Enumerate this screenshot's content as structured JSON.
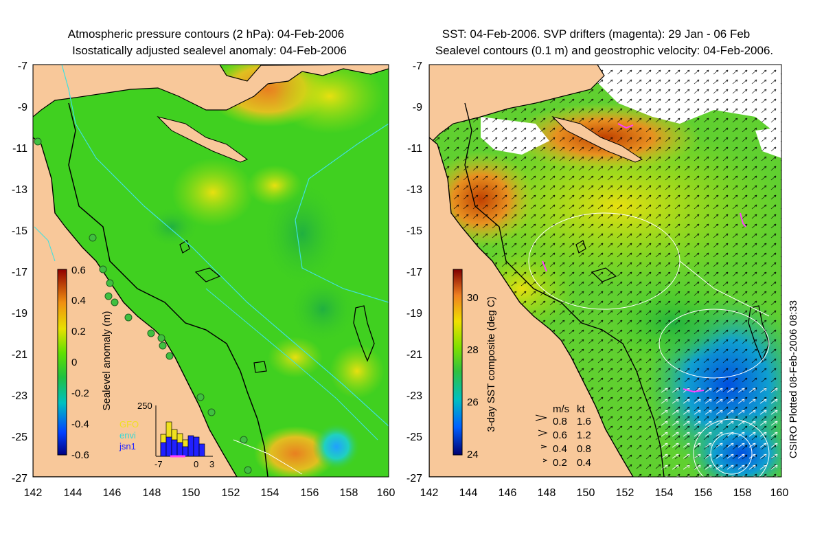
{
  "left_panel": {
    "title_line1": "Atmospheric pressure contours (2 hPa): 04-Feb-2006",
    "title_line2": "Isostatically adjusted sealevel anomaly: 04-Feb-2006",
    "colorbar_label": "Sealevel anomaly (m)",
    "colorbar_ticks": [
      "0.6",
      "0.4",
      "0.2",
      "0",
      "-0.2",
      "-0.4",
      "-0.6"
    ],
    "hist_ymax": "250",
    "hist_xticks": [
      "-7",
      "0",
      "3"
    ],
    "legend": [
      {
        "label": "GFO",
        "color": "#f0e020"
      },
      {
        "label": "envi",
        "color": "#30d8d8"
      },
      {
        "label": "jsn1",
        "color": "#2020ff"
      }
    ]
  },
  "right_panel": {
    "title_line1": "SST: 04-Feb-2006. SVP drifters (magenta): 29 Jan - 06 Feb",
    "title_line2": "Sealevel contours (0.1 m) and geostrophic velocity: 04-Feb-2006.",
    "colorbar_label": "3-day SST composite (deg C)",
    "colorbar_ticks": [
      "30",
      "28",
      "26",
      "24"
    ],
    "speed_header": [
      "m/s",
      "kt"
    ],
    "speed_rows": [
      [
        "0.8",
        "1.6"
      ],
      [
        "0.6",
        "1.2"
      ],
      [
        "0.4",
        "0.8"
      ],
      [
        "0.2",
        "0.4"
      ]
    ],
    "credit": "CSIRO Plotted 08-Feb-2006 08:33"
  },
  "axes": {
    "lat_ticks": [
      "-7",
      "-9",
      "-11",
      "-13",
      "-15",
      "-17",
      "-19",
      "-21",
      "-23",
      "-25",
      "-27"
    ],
    "lon_ticks": [
      "142",
      "144",
      "146",
      "148",
      "150",
      "152",
      "154",
      "156",
      "158",
      "160"
    ]
  },
  "colors": {
    "land": "#f8c89a",
    "ocean_green": "#40d020",
    "coast": "#000000",
    "contour_cyan": "#40e0e0"
  }
}
